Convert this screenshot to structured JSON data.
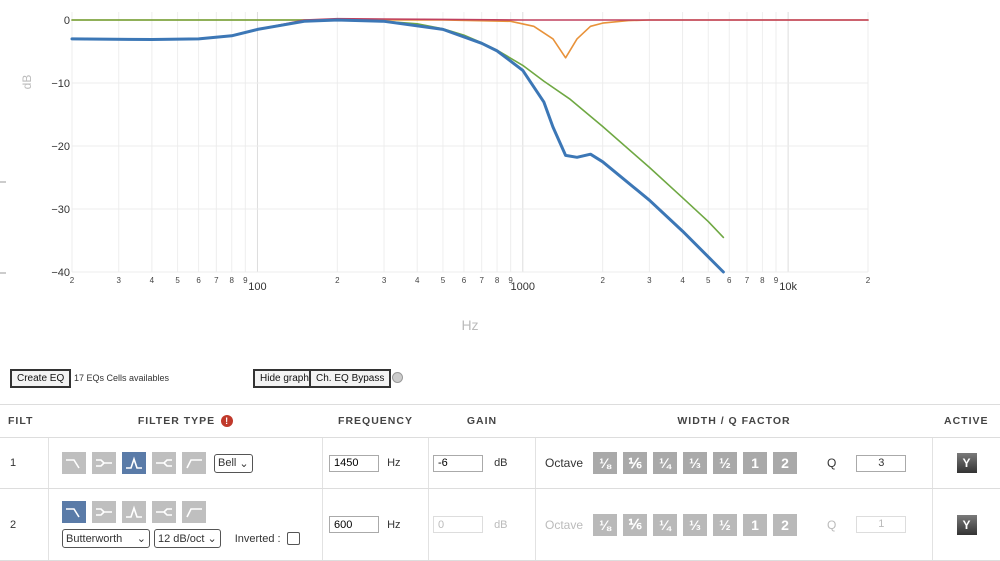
{
  "graph": {
    "ylabel": "dB",
    "xlabel": "Hz",
    "y_ticks": [
      {
        "v": 0,
        "label": "0"
      },
      {
        "v": -10,
        "label": "−10"
      },
      {
        "v": -20,
        "label": "−20"
      },
      {
        "v": -30,
        "label": "−30"
      },
      {
        "v": -40,
        "label": "−40"
      }
    ],
    "x_minor_labels": [
      {
        "f": 20,
        "t": "2"
      },
      {
        "f": 30,
        "t": "3"
      },
      {
        "f": 40,
        "t": "4"
      },
      {
        "f": 50,
        "t": "5"
      },
      {
        "f": 60,
        "t": "6"
      },
      {
        "f": 70,
        "t": "7"
      },
      {
        "f": 80,
        "t": "8"
      },
      {
        "f": 90,
        "t": "9"
      },
      {
        "f": 200,
        "t": "2"
      },
      {
        "f": 300,
        "t": "3"
      },
      {
        "f": 400,
        "t": "4"
      },
      {
        "f": 500,
        "t": "5"
      },
      {
        "f": 600,
        "t": "6"
      },
      {
        "f": 700,
        "t": "7"
      },
      {
        "f": 800,
        "t": "8"
      },
      {
        "f": 900,
        "t": "9"
      },
      {
        "f": 2000,
        "t": "2"
      },
      {
        "f": 3000,
        "t": "3"
      },
      {
        "f": 4000,
        "t": "4"
      },
      {
        "f": 5000,
        "t": "5"
      },
      {
        "f": 6000,
        "t": "6"
      },
      {
        "f": 7000,
        "t": "7"
      },
      {
        "f": 8000,
        "t": "8"
      },
      {
        "f": 9000,
        "t": "9"
      },
      {
        "f": 20000,
        "t": "2"
      }
    ],
    "x_major_labels": [
      {
        "f": 100,
        "t": "100"
      },
      {
        "f": 1000,
        "t": "1000"
      },
      {
        "f": 10000,
        "t": "10k"
      }
    ]
  },
  "chart_data": {
    "type": "line",
    "xlabel": "Hz",
    "ylabel": "dB",
    "xscale": "log",
    "xlim": [
      20,
      20000
    ],
    "ylim": [
      -40,
      0
    ],
    "series": [
      {
        "color": "#e8923a",
        "x": [
          20,
          50,
          100,
          150,
          200,
          500,
          900,
          1100,
          1300,
          1450,
          1600,
          1800,
          2000,
          2500,
          3000,
          5000,
          10000,
          20000
        ],
        "y": [
          0,
          0,
          0,
          0,
          0,
          0,
          -0.2,
          -1,
          -3,
          -6,
          -3,
          -1,
          -0.5,
          -0.1,
          0,
          0,
          0,
          0
        ]
      },
      {
        "color": "#6fa843",
        "x": [
          20,
          100,
          200,
          300,
          400,
          500,
          600,
          700,
          800,
          1000,
          1200,
          1500,
          2000,
          3000,
          4000,
          5000,
          5700
        ],
        "y": [
          0,
          0,
          0,
          -0.2,
          -0.6,
          -1.4,
          -2.4,
          -3.6,
          -4.8,
          -7.2,
          -9.7,
          -12.5,
          -16.9,
          -23.4,
          -28.2,
          -32,
          -34.5
        ]
      },
      {
        "color": "#c0405e",
        "x": [
          20,
          40,
          60,
          80,
          100,
          150,
          200,
          500,
          1000,
          5000,
          20000
        ],
        "y": [
          -3,
          -3.1,
          -3,
          -2.5,
          -1.5,
          0,
          0.2,
          0.1,
          0,
          0,
          0
        ]
      },
      {
        "color": "#3c77b6",
        "x": [
          20,
          40,
          60,
          80,
          100,
          150,
          200,
          300,
          500,
          700,
          800,
          1000,
          1200,
          1300,
          1450,
          1600,
          1800,
          2000,
          3000,
          4000,
          5700
        ],
        "y": [
          -3,
          -3.1,
          -3,
          -2.5,
          -1.5,
          -0.2,
          0,
          -0.2,
          -1.5,
          -3.7,
          -4.9,
          -8,
          -13,
          -17,
          -21.5,
          -21.8,
          -21.3,
          -22.5,
          -28.6,
          -33.5,
          -40
        ]
      }
    ]
  },
  "toolbar": {
    "create_eq": "Create EQ",
    "cells_info": "17 EQs Cells availables",
    "hide_graph": "Hide graph",
    "eq_bypass": "Ch. EQ Bypass"
  },
  "table": {
    "headers": {
      "filt": "FILT",
      "filter_type": "FILTER TYPE",
      "frequency": "FREQUENCY",
      "gain": "GAIN",
      "width_q": "WIDTH / Q FACTOR",
      "active": "ACTIVE"
    },
    "rows": [
      {
        "index": "1",
        "type_select": "Bell",
        "frequency": "1450",
        "freq_unit": "Hz",
        "gain": "-6",
        "gain_unit": "dB",
        "octave_label": "Octave",
        "octaves": [
          "⅛",
          "⅙",
          "¼",
          "⅓",
          "½",
          "1",
          "2"
        ],
        "q_label": "Q",
        "q_value": "3",
        "active": "Y"
      },
      {
        "index": "2",
        "type_select": "Butterworth",
        "slope_select": "12 dB/oct",
        "inverted_label": "Inverted :",
        "frequency": "600",
        "freq_unit": "Hz",
        "gain": "0",
        "gain_unit": "dB",
        "octave_label": "Octave",
        "octaves": [
          "⅛",
          "⅙",
          "¼",
          "⅓",
          "½",
          "1",
          "2"
        ],
        "q_label": "Q",
        "q_value": "1",
        "active": "Y"
      }
    ]
  }
}
